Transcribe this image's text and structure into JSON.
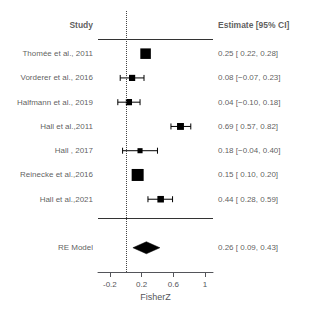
{
  "chart_data": {
    "type": "forest",
    "categories": [
      "Thomée et al., 2011",
      "Vorderer et al., 2016",
      "Halfmann et al., 2019",
      "Hall et al.,2011",
      "Hall , 2017",
      "Reinecke et al.,2016",
      "Hall et al.,2021"
    ],
    "values": [
      0.25,
      0.08,
      0.04,
      0.69,
      0.18,
      0.15,
      0.44
    ],
    "ci_low": [
      0.22,
      -0.07,
      -0.1,
      0.57,
      -0.04,
      0.1,
      0.28
    ],
    "ci_high": [
      0.28,
      0.23,
      0.18,
      0.82,
      0.4,
      0.2,
      0.59
    ],
    "weights": [
      18,
      6,
      6,
      8,
      3,
      22,
      7
    ],
    "value_labels": [
      "0.25 [ 0.22, 0.28]",
      "0.08 [−0.07, 0.23]",
      "0.04 [−0.10, 0.18]",
      "0.69 [ 0.57, 0.82]",
      "0.18 [−0.04, 0.40]",
      "0.15 [ 0.10, 0.20]",
      "0.44 [ 0.28, 0.59]"
    ],
    "summary": {
      "label": "RE Model",
      "value": 0.26,
      "ci_low": 0.09,
      "ci_high": 0.43,
      "value_label": "0.26 [ 0.09, 0.43]"
    },
    "column_headers": [
      "Study",
      "Estimate [95% CI]"
    ],
    "xlabel": "FisherZ",
    "xlim": [
      -0.35,
      1.1
    ],
    "xticks": [
      -0.2,
      0.2,
      0.6,
      1
    ],
    "reference_line": 0,
    "color": "#000000",
    "grid": false
  }
}
